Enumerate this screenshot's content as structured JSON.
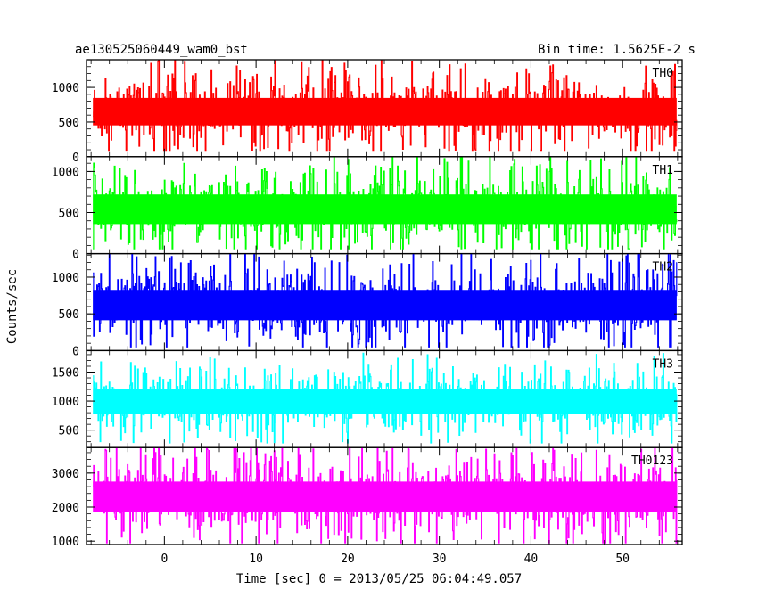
{
  "chart_data": {
    "type": "line",
    "title_left": "ae130525060449_wam0_bst",
    "title_right": "Bin time: 1.5625E-2 s",
    "xlabel": "Time [sec] 0 = 2013/05/25 06:04:49.057",
    "ylabel": "Counts/sec",
    "xlim": [
      -8.5,
      56.5
    ],
    "data_x_range": [
      -7.8,
      55.9
    ],
    "xticks": [
      0,
      10,
      20,
      30,
      40,
      50
    ],
    "xtick_labels": [
      "0",
      "10",
      "20",
      "30",
      "40",
      "50"
    ],
    "grid": false,
    "panels": [
      {
        "name": "TH0",
        "color": "#ff0000",
        "ylim": [
          0,
          1400
        ],
        "yticks": [
          0,
          500,
          1000
        ],
        "ytick_labels": [
          "0",
          "500",
          "1000"
        ],
        "mean": 650,
        "spread": 220,
        "min": 80,
        "max": 1400
      },
      {
        "name": "TH1",
        "color": "#00ff00",
        "ylim": [
          0,
          1180
        ],
        "yticks": [
          0,
          500,
          1000
        ],
        "ytick_labels": [
          "0",
          "500",
          "1000"
        ],
        "mean": 540,
        "spread": 200,
        "min": 60,
        "max": 1180
      },
      {
        "name": "TH2",
        "color": "#0000ff",
        "ylim": [
          0,
          1320
        ],
        "yticks": [
          0,
          500,
          1000
        ],
        "ytick_labels": [
          "0",
          "500",
          "1000"
        ],
        "mean": 620,
        "spread": 230,
        "min": 50,
        "max": 1320
      },
      {
        "name": "TH3",
        "color": "#00ffff",
        "ylim": [
          200,
          1870
        ],
        "yticks": [
          500,
          1000,
          1500
        ],
        "ytick_labels": [
          "500",
          "1000",
          "1500"
        ],
        "mean": 1000,
        "spread": 240,
        "min": 280,
        "max": 1850
      },
      {
        "name": "TH0123",
        "color": "#ff00ff",
        "ylim": [
          900,
          3750
        ],
        "yticks": [
          1000,
          2000,
          3000
        ],
        "ytick_labels": [
          "1000",
          "2000",
          "3000"
        ],
        "mean": 2300,
        "spread": 500,
        "min": 950,
        "max": 3750
      }
    ]
  }
}
